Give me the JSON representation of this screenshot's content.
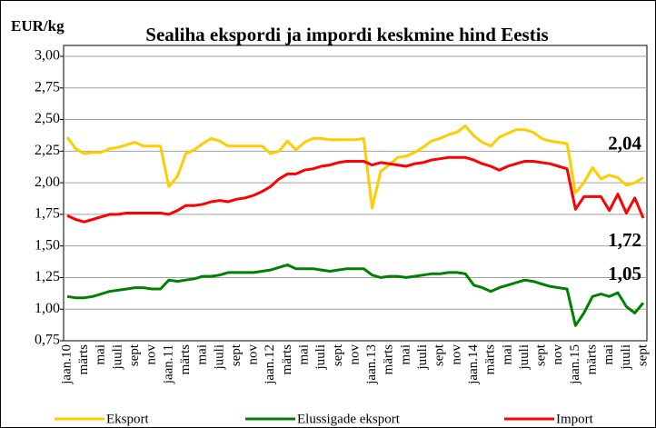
{
  "chart_data": {
    "type": "line",
    "title": "Sealiha ekspordi ja impordi keskmine hind Eestis",
    "y_label": "EUR/kg",
    "categories": [
      "jaan.10",
      null,
      "märts",
      null,
      "mai",
      null,
      "juuli",
      null,
      "sept",
      null,
      "nov",
      null,
      "jaan.11",
      null,
      "märts",
      null,
      "mai",
      null,
      "juuli",
      null,
      "sept",
      null,
      "nov",
      null,
      "jaan.12",
      null,
      "märts",
      null,
      "mai",
      null,
      "juuli",
      null,
      "sept",
      null,
      "nov",
      null,
      "jaan.13",
      null,
      "märts",
      null,
      "mai",
      null,
      "juuli",
      null,
      "sept",
      null,
      "nov",
      null,
      "jaan.14",
      null,
      "märts",
      null,
      "mai",
      null,
      "juuli",
      null,
      "sept",
      null,
      "nov",
      null,
      "jaan.15",
      null,
      "märts",
      null,
      "mai",
      null,
      "juuli",
      null,
      "sept"
    ],
    "series": [
      {
        "name": "Eksport",
        "color": "#ffcc00",
        "values": [
          2.36,
          2.27,
          2.23,
          2.24,
          2.24,
          2.27,
          2.28,
          2.3,
          2.32,
          2.29,
          2.29,
          2.29,
          1.97,
          2.05,
          2.23,
          2.26,
          2.31,
          2.35,
          2.33,
          2.29,
          2.29,
          2.29,
          2.29,
          2.29,
          2.23,
          2.25,
          2.33,
          2.26,
          2.32,
          2.35,
          2.35,
          2.34,
          2.34,
          2.34,
          2.34,
          2.35,
          1.8,
          2.09,
          2.14,
          2.2,
          2.21,
          2.24,
          2.28,
          2.33,
          2.35,
          2.38,
          2.4,
          2.45,
          2.37,
          2.32,
          2.29,
          2.36,
          2.39,
          2.42,
          2.42,
          2.4,
          2.35,
          2.33,
          2.32,
          2.31,
          1.92,
          2.0,
          2.12,
          2.03,
          2.06,
          2.04,
          1.98,
          2.0,
          2.04
        ],
        "value_labels": [
          null,
          null,
          null,
          null,
          null,
          null,
          null,
          null,
          null,
          null,
          null,
          null,
          null,
          null,
          null,
          null,
          null,
          null,
          null,
          null,
          null,
          null,
          null,
          null,
          null,
          null,
          null,
          null,
          null,
          null,
          null,
          null,
          null,
          null,
          null,
          null,
          null,
          null,
          null,
          null,
          null,
          null,
          null,
          null,
          null,
          null,
          null,
          null,
          null,
          null,
          null,
          null,
          null,
          null,
          null,
          null,
          null,
          null,
          null,
          null,
          null,
          null,
          null,
          null,
          null,
          null,
          null,
          null,
          "2,04"
        ]
      },
      {
        "name": "Elussigade eksport",
        "color": "#008000",
        "values": [
          1.1,
          1.09,
          1.09,
          1.1,
          1.12,
          1.14,
          1.15,
          1.16,
          1.17,
          1.17,
          1.16,
          1.16,
          1.23,
          1.22,
          1.23,
          1.24,
          1.26,
          1.26,
          1.27,
          1.29,
          1.29,
          1.29,
          1.29,
          1.3,
          1.31,
          1.33,
          1.35,
          1.32,
          1.32,
          1.32,
          1.31,
          1.3,
          1.31,
          1.32,
          1.32,
          1.32,
          1.27,
          1.25,
          1.26,
          1.26,
          1.25,
          1.26,
          1.27,
          1.28,
          1.28,
          1.29,
          1.29,
          1.28,
          1.19,
          1.17,
          1.14,
          1.17,
          1.19,
          1.21,
          1.23,
          1.22,
          1.2,
          1.18,
          1.17,
          1.16,
          0.87,
          0.97,
          1.1,
          1.12,
          1.1,
          1.13,
          1.02,
          0.97,
          1.05
        ],
        "value_labels": [
          null,
          null,
          null,
          null,
          null,
          null,
          null,
          null,
          null,
          null,
          null,
          null,
          null,
          null,
          null,
          null,
          null,
          null,
          null,
          null,
          null,
          null,
          null,
          null,
          null,
          null,
          null,
          null,
          null,
          null,
          null,
          null,
          null,
          null,
          null,
          null,
          null,
          null,
          null,
          null,
          null,
          null,
          null,
          null,
          null,
          null,
          null,
          null,
          null,
          null,
          null,
          null,
          null,
          null,
          null,
          null,
          null,
          null,
          null,
          null,
          null,
          null,
          null,
          null,
          null,
          null,
          null,
          null,
          "1,05"
        ]
      },
      {
        "name": "Import",
        "color": "#ff0000",
        "values": [
          1.74,
          1.71,
          1.69,
          1.71,
          1.73,
          1.75,
          1.75,
          1.76,
          1.76,
          1.76,
          1.76,
          1.76,
          1.75,
          1.78,
          1.82,
          1.82,
          1.83,
          1.85,
          1.86,
          1.85,
          1.87,
          1.88,
          1.9,
          1.93,
          1.97,
          2.03,
          2.07,
          2.07,
          2.1,
          2.11,
          2.13,
          2.14,
          2.16,
          2.17,
          2.17,
          2.17,
          2.14,
          2.16,
          2.15,
          2.14,
          2.13,
          2.15,
          2.16,
          2.18,
          2.19,
          2.2,
          2.2,
          2.2,
          2.18,
          2.15,
          2.13,
          2.1,
          2.13,
          2.15,
          2.17,
          2.17,
          2.16,
          2.15,
          2.13,
          2.11,
          1.79,
          1.89,
          1.89,
          1.89,
          1.78,
          1.91,
          1.76,
          1.88,
          1.72
        ],
        "value_labels": [
          null,
          null,
          null,
          null,
          null,
          null,
          null,
          null,
          null,
          null,
          null,
          null,
          null,
          null,
          null,
          null,
          null,
          null,
          null,
          null,
          null,
          null,
          null,
          null,
          null,
          null,
          null,
          null,
          null,
          null,
          null,
          null,
          null,
          null,
          null,
          null,
          null,
          null,
          null,
          null,
          null,
          null,
          null,
          null,
          null,
          null,
          null,
          null,
          null,
          null,
          null,
          null,
          null,
          null,
          null,
          null,
          null,
          null,
          null,
          null,
          null,
          null,
          null,
          null,
          null,
          null,
          null,
          null,
          "1,72"
        ]
      }
    ],
    "ylim": [
      0.75,
      3.0
    ],
    "yticks": [
      {
        "value": 0.75,
        "label": "0,75"
      },
      {
        "value": 1.0,
        "label": "1,00"
      },
      {
        "value": 1.25,
        "label": "1,25"
      },
      {
        "value": 1.5,
        "label": "1,50"
      },
      {
        "value": 1.75,
        "label": "1,75"
      },
      {
        "value": 2.0,
        "label": "2,00"
      },
      {
        "value": 2.25,
        "label": "2,25"
      },
      {
        "value": 2.5,
        "label": "2,50"
      },
      {
        "value": 2.75,
        "label": "2,75"
      },
      {
        "value": 3.0,
        "label": "3,00"
      }
    ],
    "grid": true,
    "legend": "bottom"
  }
}
